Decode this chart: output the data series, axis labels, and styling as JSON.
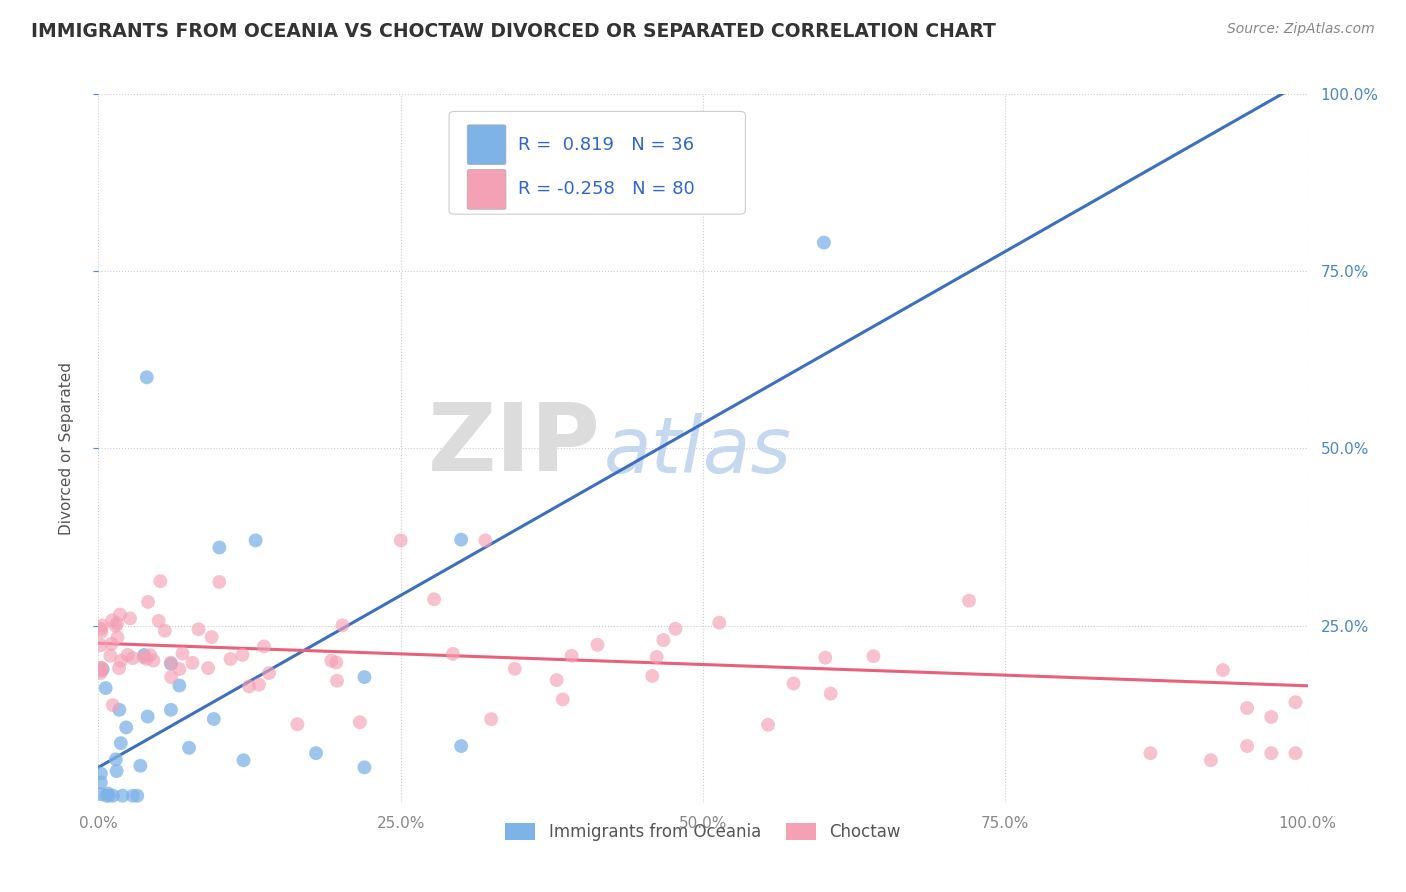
{
  "title": "IMMIGRANTS FROM OCEANIA VS CHOCTAW DIVORCED OR SEPARATED CORRELATION CHART",
  "source": "Source: ZipAtlas.com",
  "ylabel": "Divorced or Separated",
  "xlim": [
    0.0,
    1.0
  ],
  "ylim": [
    0.0,
    1.0
  ],
  "xticks": [
    0.0,
    0.25,
    0.5,
    0.75,
    1.0
  ],
  "yticks": [
    0.25,
    0.5,
    0.75,
    1.0
  ],
  "xticklabels": [
    "0.0%",
    "25.0%",
    "50.0%",
    "75.0%",
    "100.0%"
  ],
  "yticklabels": [
    "25.0%",
    "50.0%",
    "75.0%",
    "100.0%"
  ],
  "blue_color": "#7EB3E8",
  "pink_color": "#F4A0B5",
  "blue_line_color": "#3D6FBF",
  "pink_line_color": "#E8607A",
  "legend_r_blue": "0.819",
  "legend_n_blue": "36",
  "legend_r_pink": "-0.258",
  "legend_n_pink": "80",
  "legend_label_blue": "Immigrants from Oceania",
  "legend_label_pink": "Choctaw",
  "grid_color": "#CCCCCC",
  "background_color": "#FFFFFF",
  "blue_line_x0": 0.0,
  "blue_line_y0": 0.05,
  "blue_line_x1": 1.0,
  "blue_line_y1": 1.02,
  "pink_line_x0": 0.0,
  "pink_line_y0": 0.225,
  "pink_line_x1": 1.0,
  "pink_line_y1": 0.165
}
